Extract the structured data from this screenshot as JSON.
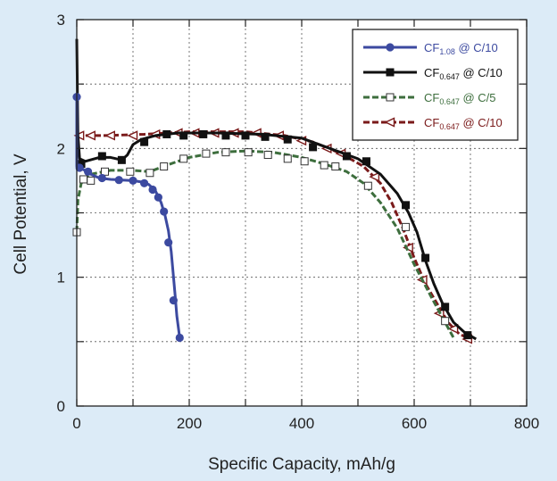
{
  "chart_data": {
    "type": "line",
    "title": "",
    "xlabel": "Specific Capacity, mAh/g",
    "ylabel": "Cell Potential, V",
    "xlim": [
      0,
      800
    ],
    "ylim": [
      0,
      3
    ],
    "xticks": [
      0,
      200,
      400,
      600,
      800
    ],
    "yticks": [
      0,
      1,
      2,
      3
    ],
    "xtick_labels": [
      "0",
      "200",
      "400",
      "600",
      "800"
    ],
    "ytick_labels": [
      "0",
      "1",
      "2",
      "3"
    ],
    "grid": true,
    "legend_position": "top-right",
    "series": [
      {
        "name": "CF1.08 @ C/10",
        "legend_parts": [
          "CF",
          "1.08",
          " @ C/10"
        ],
        "color": "#3c4aa0",
        "marker": "circle",
        "dashed": false,
        "line": [
          [
            0,
            2.4
          ],
          [
            0,
            1.86
          ],
          [
            10,
            1.84
          ],
          [
            25,
            1.8
          ],
          [
            40,
            1.77
          ],
          [
            60,
            1.76
          ],
          [
            80,
            1.755
          ],
          [
            100,
            1.75
          ],
          [
            115,
            1.74
          ],
          [
            128,
            1.72
          ],
          [
            140,
            1.67
          ],
          [
            150,
            1.58
          ],
          [
            157,
            1.48
          ],
          [
            163,
            1.36
          ],
          [
            168,
            1.2
          ],
          [
            172,
            1.0
          ],
          [
            175,
            0.85
          ],
          [
            178,
            0.7
          ],
          [
            181,
            0.6
          ],
          [
            183,
            0.53
          ]
        ],
        "markers": [
          [
            0,
            2.4
          ],
          [
            5,
            1.85
          ],
          [
            20,
            1.82
          ],
          [
            45,
            1.77
          ],
          [
            75,
            1.755
          ],
          [
            100,
            1.75
          ],
          [
            120,
            1.73
          ],
          [
            135,
            1.68
          ],
          [
            145,
            1.62
          ],
          [
            155,
            1.51
          ],
          [
            163,
            1.27
          ],
          [
            172,
            0.82
          ],
          [
            183,
            0.53
          ]
        ]
      },
      {
        "name": "CF0.647 @ C/10",
        "legend_parts": [
          "CF",
          "0.647",
          " @ C/10"
        ],
        "color": "#111111",
        "marker": "square-filled",
        "dashed": false,
        "line": [
          [
            0,
            2.85
          ],
          [
            2,
            2.1
          ],
          [
            5,
            1.92
          ],
          [
            15,
            1.9
          ],
          [
            40,
            1.93
          ],
          [
            60,
            1.93
          ],
          [
            80,
            1.91
          ],
          [
            90,
            1.95
          ],
          [
            100,
            2.03
          ],
          [
            115,
            2.07
          ],
          [
            140,
            2.1
          ],
          [
            180,
            2.12
          ],
          [
            250,
            2.12
          ],
          [
            330,
            2.11
          ],
          [
            400,
            2.08
          ],
          [
            450,
            2.0
          ],
          [
            500,
            1.92
          ],
          [
            540,
            1.8
          ],
          [
            570,
            1.65
          ],
          [
            590,
            1.5
          ],
          [
            605,
            1.35
          ],
          [
            620,
            1.13
          ],
          [
            635,
            0.95
          ],
          [
            650,
            0.8
          ],
          [
            670,
            0.65
          ],
          [
            690,
            0.57
          ],
          [
            710,
            0.52
          ]
        ],
        "markers": [
          [
            8,
            1.88
          ],
          [
            45,
            1.94
          ],
          [
            80,
            1.91
          ],
          [
            120,
            2.05
          ],
          [
            160,
            2.11
          ],
          [
            190,
            2.1
          ],
          [
            225,
            2.11
          ],
          [
            265,
            2.1
          ],
          [
            300,
            2.1
          ],
          [
            335,
            2.09
          ],
          [
            375,
            2.07
          ],
          [
            420,
            2.01
          ],
          [
            480,
            1.94
          ],
          [
            515,
            1.9
          ],
          [
            585,
            1.56
          ],
          [
            620,
            1.15
          ],
          [
            655,
            0.77
          ],
          [
            695,
            0.55
          ]
        ]
      },
      {
        "name": "CF0.647 @ C/5",
        "legend_parts": [
          "CF",
          "0.647",
          " @ C/5"
        ],
        "color": "#3d6e3d",
        "marker": "square-open",
        "dashed": true,
        "line": [
          [
            0,
            1.35
          ],
          [
            2,
            1.6
          ],
          [
            8,
            1.73
          ],
          [
            25,
            1.8
          ],
          [
            60,
            1.83
          ],
          [
            100,
            1.83
          ],
          [
            130,
            1.82
          ],
          [
            160,
            1.87
          ],
          [
            200,
            1.93
          ],
          [
            250,
            1.97
          ],
          [
            300,
            1.98
          ],
          [
            350,
            1.97
          ],
          [
            400,
            1.93
          ],
          [
            440,
            1.88
          ],
          [
            480,
            1.82
          ],
          [
            510,
            1.73
          ],
          [
            540,
            1.58
          ],
          [
            570,
            1.38
          ],
          [
            600,
            1.1
          ],
          [
            630,
            0.85
          ],
          [
            655,
            0.65
          ],
          [
            670,
            0.53
          ]
        ],
        "markers": [
          [
            0,
            1.35
          ],
          [
            12,
            1.76
          ],
          [
            25,
            1.75
          ],
          [
            50,
            1.82
          ],
          [
            95,
            1.82
          ],
          [
            130,
            1.81
          ],
          [
            155,
            1.86
          ],
          [
            190,
            1.92
          ],
          [
            230,
            1.96
          ],
          [
            265,
            1.97
          ],
          [
            305,
            1.97
          ],
          [
            340,
            1.95
          ],
          [
            375,
            1.92
          ],
          [
            405,
            1.9
          ],
          [
            440,
            1.87
          ],
          [
            460,
            1.86
          ],
          [
            518,
            1.71
          ],
          [
            585,
            1.39
          ],
          [
            655,
            0.66
          ]
        ]
      },
      {
        "name": "CF0.647 @ C/10",
        "legend_parts": [
          "CF",
          "0.647",
          " @ C/10"
        ],
        "color": "#7a1a1a",
        "marker": "triangle-left",
        "dashed": true,
        "line": [
          [
            0,
            2.1
          ],
          [
            50,
            2.1
          ],
          [
            120,
            2.11
          ],
          [
            200,
            2.13
          ],
          [
            300,
            2.13
          ],
          [
            370,
            2.1
          ],
          [
            420,
            2.05
          ],
          [
            470,
            1.96
          ],
          [
            510,
            1.86
          ],
          [
            540,
            1.73
          ],
          [
            560,
            1.58
          ],
          [
            580,
            1.38
          ],
          [
            600,
            1.15
          ],
          [
            620,
            0.95
          ],
          [
            640,
            0.8
          ],
          [
            660,
            0.65
          ],
          [
            680,
            0.56
          ],
          [
            700,
            0.52
          ]
        ],
        "markers": [
          [
            5,
            2.1
          ],
          [
            25,
            2.1
          ],
          [
            60,
            2.1
          ],
          [
            100,
            2.1
          ],
          [
            140,
            2.11
          ],
          [
            180,
            2.12
          ],
          [
            210,
            2.12
          ],
          [
            245,
            2.12
          ],
          [
            280,
            2.12
          ],
          [
            320,
            2.12
          ],
          [
            360,
            2.1
          ],
          [
            400,
            2.06
          ],
          [
            445,
            2.0
          ],
          [
            470,
            1.96
          ],
          [
            530,
            1.78
          ],
          [
            590,
            1.23
          ],
          [
            615,
            0.98
          ],
          [
            645,
            0.72
          ],
          [
            670,
            0.6
          ],
          [
            695,
            0.52
          ]
        ]
      }
    ]
  }
}
